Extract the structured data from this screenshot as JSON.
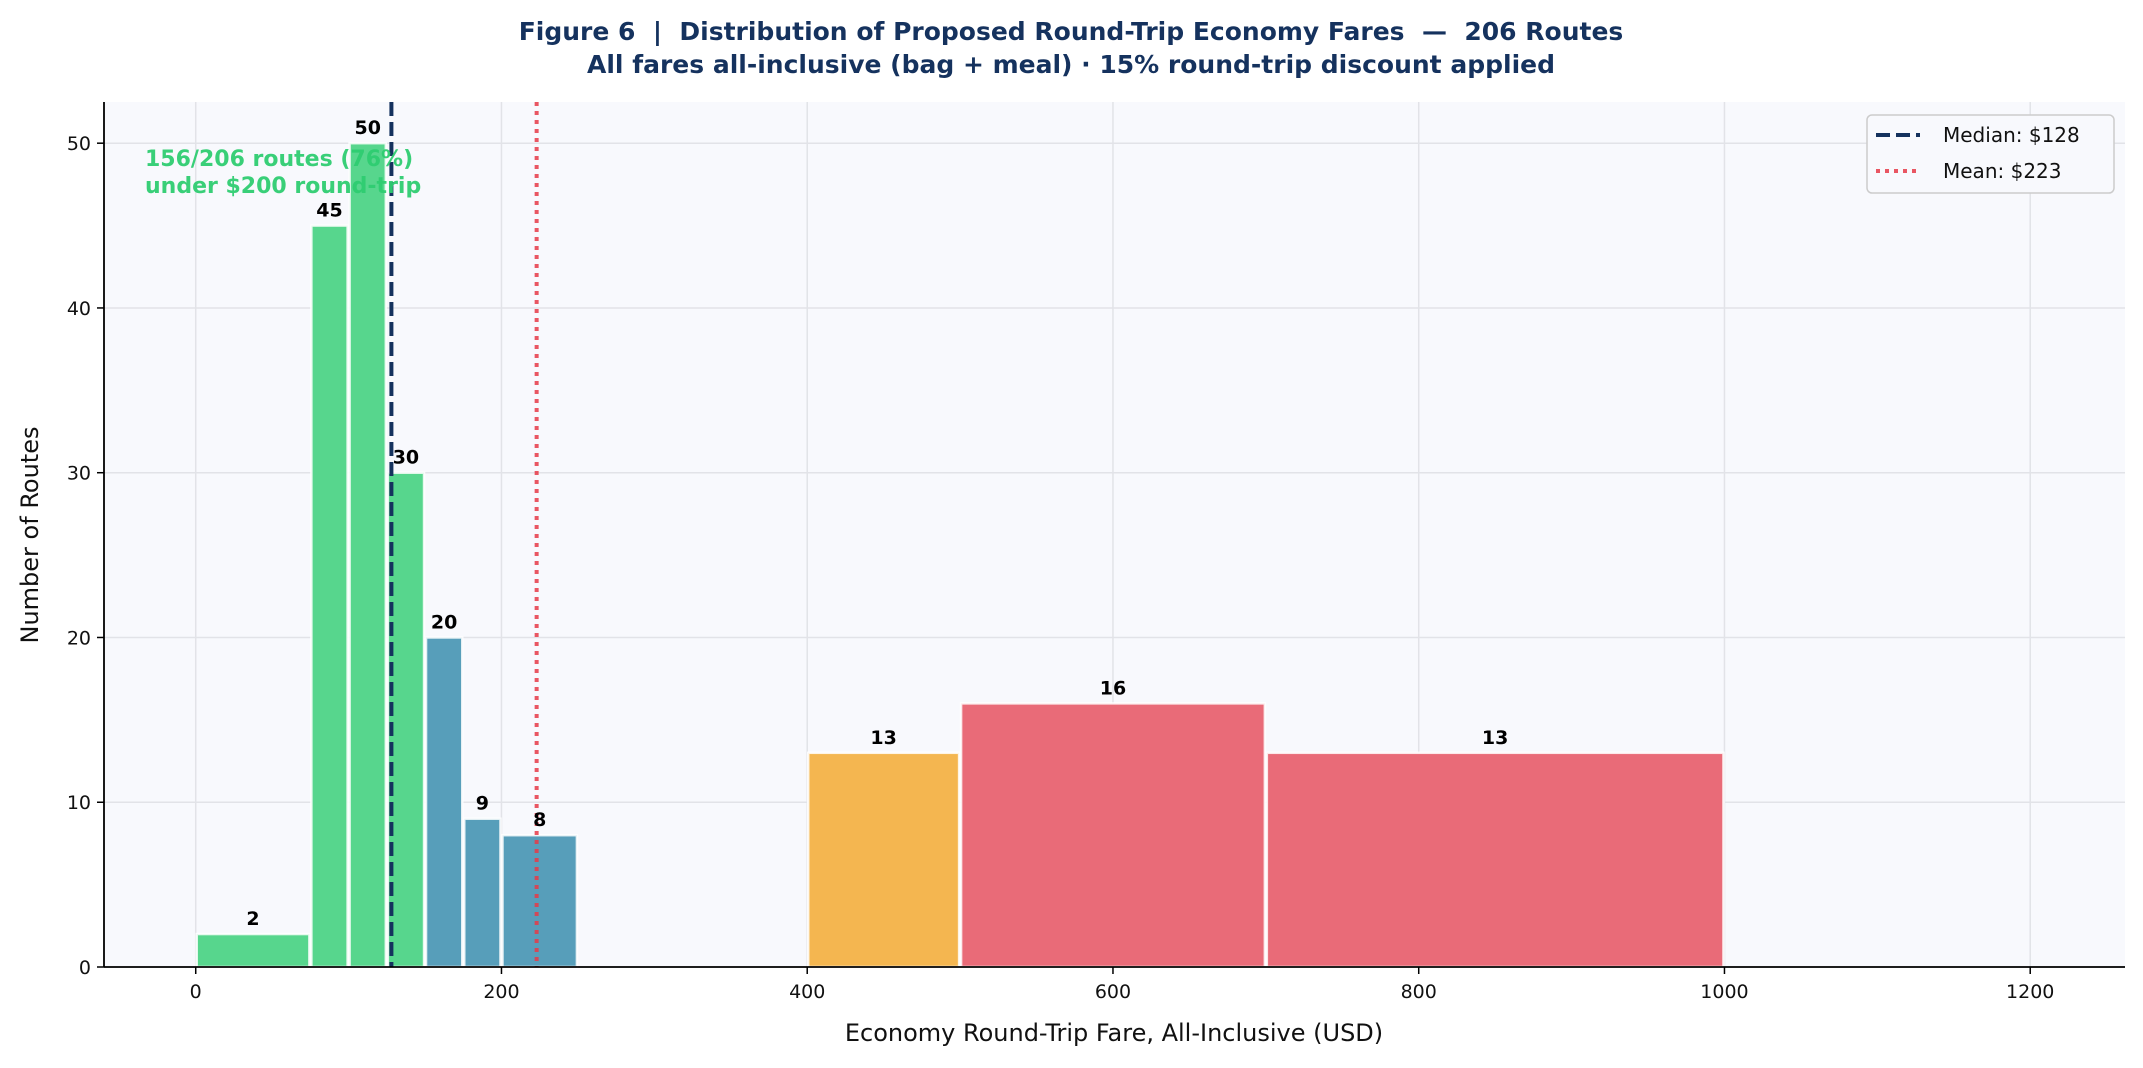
{
  "chart_data": {
    "type": "bar",
    "title": "Figure 6  |  Distribution of Proposed Round-Trip Economy Fares  —  206 Routes",
    "subtitle": "All fares all-inclusive (bag + meal) · 15% round-trip discount applied",
    "xlabel": "Economy Round-Trip Fare, All-Inclusive (USD)",
    "ylabel": "Number of Routes",
    "xlim": [
      -60,
      1262
    ],
    "ylim": [
      0,
      52.5
    ],
    "xticks": [
      0,
      200,
      400,
      600,
      800,
      1000,
      1200
    ],
    "yticks": [
      0,
      10,
      20,
      30,
      40,
      50
    ],
    "grid": true,
    "bins": [
      {
        "from": 0,
        "to": 75,
        "count": 2,
        "color": "#57d68d"
      },
      {
        "from": 75,
        "to": 100,
        "count": 45,
        "color": "#57d68d"
      },
      {
        "from": 100,
        "to": 125,
        "count": 50,
        "color": "#57d68d"
      },
      {
        "from": 125,
        "to": 150,
        "count": 30,
        "color": "#57d68d"
      },
      {
        "from": 150,
        "to": 175,
        "count": 20,
        "color": "#579eba"
      },
      {
        "from": 175,
        "to": 200,
        "count": 9,
        "color": "#579eba"
      },
      {
        "from": 200,
        "to": 250,
        "count": 8,
        "color": "#579eba"
      },
      {
        "from": 400,
        "to": 500,
        "count": 13,
        "color": "#f4b650"
      },
      {
        "from": 500,
        "to": 700,
        "count": 16,
        "color": "#e96b78"
      },
      {
        "from": 700,
        "to": 1000,
        "count": 13,
        "color": "#e96b78"
      }
    ],
    "reference_lines": [
      {
        "name": "median",
        "value": 128,
        "label": "Median: $128",
        "color": "#15325e",
        "style": "dashed"
      },
      {
        "name": "mean",
        "value": 223,
        "label": "Mean: $223",
        "color": "#e63946",
        "style": "dotted"
      }
    ],
    "annotation": {
      "lines": [
        "156/206 routes (76%)",
        "under $200 round-trip"
      ],
      "color": "#2ecc71"
    },
    "legend_position": "top-right"
  }
}
